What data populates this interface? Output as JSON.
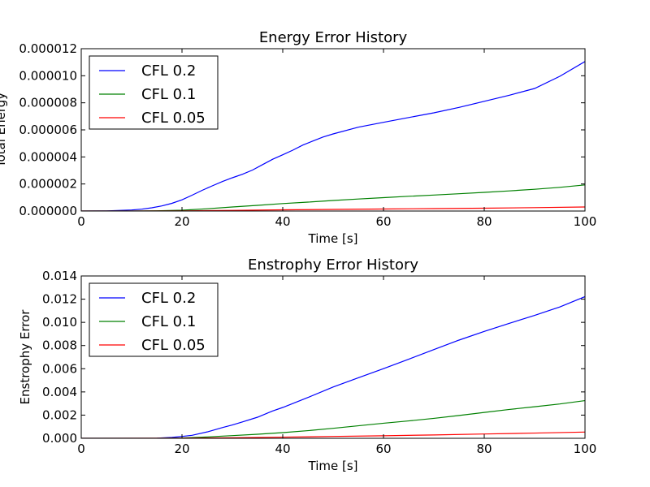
{
  "chart_data": [
    {
      "type": "line",
      "title": "Energy Error History",
      "xlabel": "Time [s]",
      "ylabel": "Total Energy",
      "xlim": [
        0,
        100
      ],
      "ylim": [
        0,
        1.2e-05
      ],
      "x_ticks": [
        "0",
        "20",
        "40",
        "60",
        "80",
        "100"
      ],
      "y_ticks": [
        "0.000000",
        "0.000002",
        "0.000004",
        "0.000006",
        "0.000008",
        "0.000010",
        "0.000012"
      ],
      "legend": "top-left",
      "grid": false,
      "series": [
        {
          "name": "CFL 0.2",
          "color": "#0000ff",
          "x": [
            0,
            5,
            10,
            12,
            14,
            16,
            18,
            20,
            22,
            24,
            26,
            28,
            30,
            32,
            34,
            36,
            38,
            40,
            42,
            44,
            46,
            48,
            50,
            55,
            60,
            65,
            70,
            75,
            80,
            85,
            90,
            95,
            100
          ],
          "y": [
            0,
            1e-08,
            8e-08,
            1.4e-07,
            2.4e-07,
            3.8e-07,
            5.7e-07,
            8.3e-07,
            1.17e-06,
            1.53e-06,
            1.86e-06,
            2.18e-06,
            2.46e-06,
            2.72e-06,
            3.03e-06,
            3.43e-06,
            3.83e-06,
            4.16e-06,
            4.5e-06,
            4.88e-06,
            5.18e-06,
            5.47e-06,
            5.7e-06,
            6.2e-06,
            6.56e-06,
            6.91e-06,
            7.26e-06,
            7.66e-06,
            8.11e-06,
            8.56e-06,
            9.06e-06,
            9.96e-06,
            1.105e-05
          ]
        },
        {
          "name": "CFL 0.1",
          "color": "#008000",
          "x": [
            0,
            10,
            15,
            20,
            25,
            30,
            35,
            40,
            45,
            50,
            55,
            60,
            65,
            70,
            75,
            80,
            85,
            90,
            95,
            100
          ],
          "y": [
            0,
            5e-09,
            2e-08,
            6e-08,
            1.7e-07,
            3e-07,
            4.2e-07,
            5.5e-07,
            6.6e-07,
            7.8e-07,
            8.9e-07,
            9.9e-07,
            1.09e-06,
            1.18e-06,
            1.28e-06,
            1.38e-06,
            1.49e-06,
            1.61e-06,
            1.75e-06,
            1.93e-06
          ]
        },
        {
          "name": "CFL 0.05",
          "color": "#ff0000",
          "x": [
            0,
            10,
            20,
            30,
            40,
            50,
            60,
            70,
            80,
            90,
            100
          ],
          "y": [
            0,
            2e-09,
            8e-09,
            5e-08,
            9e-08,
            1.2e-07,
            1.5e-07,
            1.8e-07,
            2.1e-07,
            2.5e-07,
            3e-07
          ]
        }
      ]
    },
    {
      "type": "line",
      "title": "Enstrophy Error History",
      "xlabel": "Time [s]",
      "ylabel": "Enstrophy Error",
      "xlim": [
        0,
        100
      ],
      "ylim": [
        0,
        0.014
      ],
      "x_ticks": [
        "0",
        "20",
        "40",
        "60",
        "80",
        "100"
      ],
      "y_ticks": [
        "0.000",
        "0.002",
        "0.004",
        "0.006",
        "0.008",
        "0.010",
        "0.012",
        "0.014"
      ],
      "legend": "top-left",
      "grid": false,
      "series": [
        {
          "name": "CFL 0.2",
          "color": "#0000ff",
          "x": [
            0,
            10,
            15,
            18,
            20,
            22,
            25,
            28,
            30,
            32,
            35,
            38,
            40,
            45,
            50,
            55,
            60,
            65,
            70,
            75,
            80,
            85,
            90,
            95,
            100
          ],
          "y": [
            0,
            0,
            1e-05,
            8e-05,
            0.00016,
            0.00026,
            0.00055,
            0.00092,
            0.00115,
            0.00141,
            0.00182,
            0.00236,
            0.00266,
            0.00352,
            0.00442,
            0.00522,
            0.00601,
            0.00682,
            0.00765,
            0.00847,
            0.00922,
            0.00992,
            0.0106,
            0.01133,
            0.01222
          ]
        },
        {
          "name": "CFL 0.1",
          "color": "#008000",
          "x": [
            0,
            15,
            20,
            25,
            30,
            35,
            40,
            45,
            50,
            55,
            60,
            65,
            70,
            75,
            80,
            85,
            90,
            95,
            100
          ],
          "y": [
            0,
            5e-06,
            3e-05,
            0.00012,
            0.00023,
            0.00035,
            0.00049,
            0.00066,
            0.00086,
            0.00108,
            0.0013,
            0.0015,
            0.00172,
            0.00197,
            0.00223,
            0.00249,
            0.00272,
            0.00296,
            0.00325
          ]
        },
        {
          "name": "CFL 0.05",
          "color": "#ff0000",
          "x": [
            0,
            20,
            30,
            40,
            50,
            60,
            70,
            80,
            90,
            100
          ],
          "y": [
            0,
            1e-05,
            5e-05,
            0.0001,
            0.00016,
            0.00022,
            0.00029,
            0.00037,
            0.00045,
            0.00054
          ]
        }
      ]
    }
  ]
}
